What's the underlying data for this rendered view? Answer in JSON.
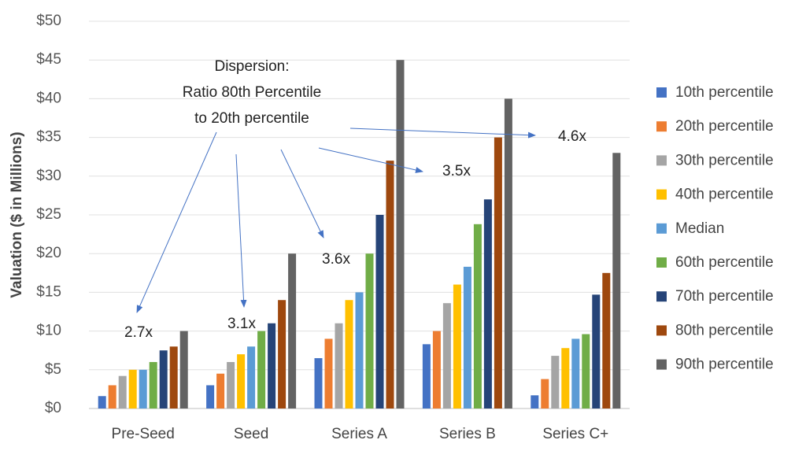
{
  "chart_data": {
    "type": "bar",
    "y_label": "Valuation ($ in Millions)",
    "categories": [
      "Pre-Seed",
      "Seed",
      "Series A",
      "Series B",
      "Series C+"
    ],
    "series": [
      {
        "name": "10th percentile",
        "color": "#4472c4",
        "values": [
          1.6,
          3.0,
          6.5,
          8.3,
          1.7
        ]
      },
      {
        "name": "20th percentile",
        "color": "#ed7d31",
        "values": [
          3.0,
          4.5,
          9.0,
          10.0,
          3.8
        ]
      },
      {
        "name": "30th percentile",
        "color": "#a5a5a5",
        "values": [
          4.2,
          6.0,
          11.0,
          13.6,
          6.8
        ]
      },
      {
        "name": "40th percentile",
        "color": "#ffc000",
        "values": [
          5.0,
          7.0,
          14.0,
          16.0,
          7.8
        ]
      },
      {
        "name": "Median",
        "color": "#5b9bd5",
        "values": [
          5.0,
          8.0,
          15.0,
          18.3,
          9.0
        ]
      },
      {
        "name": "60th percentile",
        "color": "#70ad47",
        "values": [
          6.0,
          10.0,
          20.0,
          23.8,
          9.6
        ]
      },
      {
        "name": "70th percentile",
        "color": "#264478",
        "values": [
          7.5,
          11.0,
          25.0,
          27.0,
          14.7
        ]
      },
      {
        "name": "80th percentile",
        "color": "#9e480e",
        "values": [
          8.0,
          14.0,
          32.0,
          35.0,
          17.5
        ]
      },
      {
        "name": "90th percentile",
        "color": "#636363",
        "values": [
          10.0,
          20.0,
          45.0,
          40.0,
          33.0
        ]
      }
    ],
    "ylim": [
      0,
      50
    ],
    "yticks": [
      {
        "value": 0,
        "label": "$0"
      },
      {
        "value": 5,
        "label": "$5"
      },
      {
        "value": 10,
        "label": "$10"
      },
      {
        "value": 15,
        "label": "$15"
      },
      {
        "value": 20,
        "label": "$20"
      },
      {
        "value": 25,
        "label": "$25"
      },
      {
        "value": 30,
        "label": "$30"
      },
      {
        "value": 35,
        "label": "$35"
      },
      {
        "value": 40,
        "label": "$40"
      },
      {
        "value": 45,
        "label": "$45"
      },
      {
        "value": 50,
        "label": "$50"
      }
    ],
    "grid": true,
    "legend": "right",
    "annotation_title": [
      "Dispersion:",
      "Ratio 80th Percentile",
      "to 20th percentile"
    ],
    "annotations": [
      "2.7x",
      "3.1x",
      "3.6x",
      "3.5x",
      "4.6x"
    ]
  }
}
